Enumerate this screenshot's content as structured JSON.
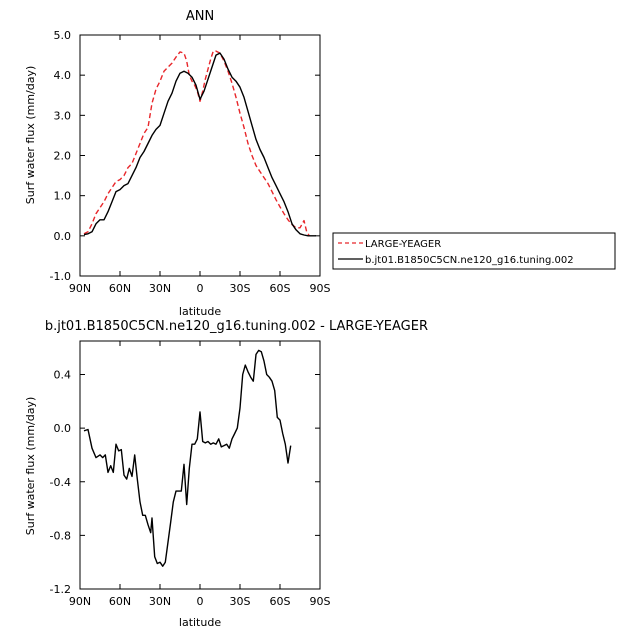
{
  "chart_data": [
    {
      "type": "line",
      "title": "ANN",
      "xlabel": "latitude",
      "ylabel": "Surf water flux (mm/day)",
      "xlim": [
        -90,
        90
      ],
      "ylim": [
        -1.0,
        5.0
      ],
      "x_ticks": [
        -90,
        -60,
        -30,
        0,
        30,
        60,
        90
      ],
      "x_tick_labels": [
        "90N",
        "60N",
        "30N",
        "0",
        "30S",
        "60S",
        "90S"
      ],
      "y_ticks": [
        -1.0,
        0.0,
        1.0,
        2.0,
        3.0,
        4.0,
        5.0
      ],
      "y_tick_labels": [
        "-1.0",
        "0.0",
        "1.0",
        "2.0",
        "3.0",
        "4.0",
        "5.0"
      ],
      "legend": {
        "placement": "outside-right"
      },
      "series": [
        {
          "name": "LARGE-YEAGER",
          "color": "#e8262a",
          "dash": "dashed",
          "points": [
            [
              -87,
              0.05
            ],
            [
              -84,
              0.1
            ],
            [
              -81,
              0.3
            ],
            [
              -78,
              0.55
            ],
            [
              -75,
              0.7
            ],
            [
              -72,
              0.85
            ],
            [
              -69,
              1.05
            ],
            [
              -66,
              1.2
            ],
            [
              -63,
              1.35
            ],
            [
              -60,
              1.4
            ],
            [
              -57,
              1.5
            ],
            [
              -54,
              1.7
            ],
            [
              -51,
              1.8
            ],
            [
              -48,
              2.05
            ],
            [
              -45,
              2.3
            ],
            [
              -42,
              2.55
            ],
            [
              -39,
              2.7
            ],
            [
              -36,
              3.3
            ],
            [
              -33,
              3.65
            ],
            [
              -30,
              3.85
            ],
            [
              -27,
              4.1
            ],
            [
              -24,
              4.2
            ],
            [
              -21,
              4.3
            ],
            [
              -18,
              4.45
            ],
            [
              -15,
              4.58
            ],
            [
              -12,
              4.55
            ],
            [
              -10,
              4.35
            ],
            [
              -8,
              4.0
            ],
            [
              -6,
              3.85
            ],
            [
              -4,
              3.75
            ],
            [
              -2,
              3.6
            ],
            [
              0,
              3.35
            ],
            [
              2,
              3.6
            ],
            [
              4,
              3.9
            ],
            [
              6,
              4.15
            ],
            [
              8,
              4.4
            ],
            [
              10,
              4.6
            ],
            [
              12,
              4.6
            ],
            [
              15,
              4.55
            ],
            [
              18,
              4.35
            ],
            [
              21,
              4.1
            ],
            [
              24,
              3.8
            ],
            [
              27,
              3.45
            ],
            [
              30,
              3.05
            ],
            [
              33,
              2.7
            ],
            [
              36,
              2.3
            ],
            [
              39,
              2.0
            ],
            [
              42,
              1.75
            ],
            [
              45,
              1.6
            ],
            [
              48,
              1.45
            ],
            [
              51,
              1.3
            ],
            [
              54,
              1.1
            ],
            [
              57,
              0.9
            ],
            [
              60,
              0.72
            ],
            [
              63,
              0.55
            ],
            [
              66,
              0.4
            ],
            [
              69,
              0.28
            ],
            [
              72,
              0.2
            ],
            [
              75,
              0.2
            ],
            [
              78,
              0.38
            ],
            [
              80,
              0.1
            ],
            [
              82,
              0.0
            ]
          ]
        },
        {
          "name": "b.jt01.B1850C5CN.ne120_g16.tuning.002",
          "color": "#000000",
          "dash": "solid",
          "points": [
            [
              -87,
              0.03
            ],
            [
              -84,
              0.05
            ],
            [
              -81,
              0.1
            ],
            [
              -78,
              0.3
            ],
            [
              -75,
              0.4
            ],
            [
              -72,
              0.4
            ],
            [
              -69,
              0.6
            ],
            [
              -66,
              0.85
            ],
            [
              -63,
              1.1
            ],
            [
              -60,
              1.15
            ],
            [
              -57,
              1.25
            ],
            [
              -54,
              1.3
            ],
            [
              -51,
              1.5
            ],
            [
              -48,
              1.7
            ],
            [
              -45,
              1.95
            ],
            [
              -42,
              2.1
            ],
            [
              -39,
              2.3
            ],
            [
              -36,
              2.5
            ],
            [
              -33,
              2.65
            ],
            [
              -30,
              2.75
            ],
            [
              -27,
              3.05
            ],
            [
              -24,
              3.35
            ],
            [
              -21,
              3.55
            ],
            [
              -18,
              3.85
            ],
            [
              -15,
              4.05
            ],
            [
              -12,
              4.1
            ],
            [
              -9,
              4.05
            ],
            [
              -6,
              3.95
            ],
            [
              -3,
              3.75
            ],
            [
              0,
              3.4
            ],
            [
              3,
              3.6
            ],
            [
              6,
              3.9
            ],
            [
              9,
              4.2
            ],
            [
              12,
              4.5
            ],
            [
              15,
              4.55
            ],
            [
              18,
              4.4
            ],
            [
              21,
              4.15
            ],
            [
              24,
              3.95
            ],
            [
              27,
              3.85
            ],
            [
              30,
              3.7
            ],
            [
              33,
              3.45
            ],
            [
              36,
              3.1
            ],
            [
              39,
              2.75
            ],
            [
              42,
              2.4
            ],
            [
              45,
              2.15
            ],
            [
              48,
              1.95
            ],
            [
              51,
              1.7
            ],
            [
              54,
              1.45
            ],
            [
              57,
              1.25
            ],
            [
              60,
              1.05
            ],
            [
              63,
              0.85
            ],
            [
              66,
              0.6
            ],
            [
              69,
              0.3
            ],
            [
              72,
              0.15
            ],
            [
              75,
              0.05
            ],
            [
              78,
              0.02
            ],
            [
              81,
              0.0
            ],
            [
              84,
              0.0
            ],
            [
              87,
              0.0
            ]
          ]
        }
      ]
    },
    {
      "type": "line",
      "title": "b.jt01.B1850C5CN.ne120_g16.tuning.002 - LARGE-YEAGER",
      "xlabel": "latitude",
      "ylabel": "Surf water flux (mm/day)",
      "xlim": [
        -90,
        90
      ],
      "ylim": [
        -1.2,
        0.65
      ],
      "x_ticks": [
        -90,
        -60,
        -30,
        0,
        30,
        60,
        90
      ],
      "x_tick_labels": [
        "90N",
        "60N",
        "30N",
        "0",
        "30S",
        "60S",
        "90S"
      ],
      "y_ticks": [
        -1.2,
        -0.8,
        -0.4,
        0.0,
        0.4
      ],
      "y_tick_labels": [
        "-1.2",
        "-0.8",
        "-0.4",
        "0.0",
        "0.4"
      ],
      "series": [
        {
          "color": "#000000",
          "dash": "solid",
          "points": [
            [
              -87,
              -0.02
            ],
            [
              -84,
              -0.01
            ],
            [
              -81,
              -0.15
            ],
            [
              -78,
              -0.22
            ],
            [
              -75,
              -0.2
            ],
            [
              -73,
              -0.22
            ],
            [
              -71,
              -0.2
            ],
            [
              -69,
              -0.33
            ],
            [
              -67,
              -0.28
            ],
            [
              -65,
              -0.33
            ],
            [
              -63,
              -0.12
            ],
            [
              -61,
              -0.17
            ],
            [
              -59,
              -0.16
            ],
            [
              -57,
              -0.35
            ],
            [
              -55,
              -0.38
            ],
            [
              -53,
              -0.3
            ],
            [
              -51,
              -0.36
            ],
            [
              -49,
              -0.2
            ],
            [
              -47,
              -0.38
            ],
            [
              -45,
              -0.55
            ],
            [
              -43,
              -0.65
            ],
            [
              -41,
              -0.65
            ],
            [
              -39,
              -0.72
            ],
            [
              -37,
              -0.78
            ],
            [
              -36,
              -0.67
            ],
            [
              -34,
              -0.96
            ],
            [
              -32,
              -1.01
            ],
            [
              -30,
              -1.0
            ],
            [
              -28,
              -1.03
            ],
            [
              -26,
              -1.0
            ],
            [
              -24,
              -0.85
            ],
            [
              -22,
              -0.7
            ],
            [
              -20,
              -0.55
            ],
            [
              -18,
              -0.47
            ],
            [
              -16,
              -0.47
            ],
            [
              -14,
              -0.47
            ],
            [
              -12,
              -0.27
            ],
            [
              -10,
              -0.57
            ],
            [
              -8,
              -0.3
            ],
            [
              -6,
              -0.12
            ],
            [
              -4,
              -0.12
            ],
            [
              -2,
              -0.08
            ],
            [
              0,
              0.12
            ],
            [
              2,
              -0.1
            ],
            [
              4,
              -0.11
            ],
            [
              6,
              -0.1
            ],
            [
              8,
              -0.12
            ],
            [
              10,
              -0.11
            ],
            [
              12,
              -0.12
            ],
            [
              14,
              -0.08
            ],
            [
              16,
              -0.14
            ],
            [
              18,
              -0.13
            ],
            [
              20,
              -0.12
            ],
            [
              22,
              -0.15
            ],
            [
              24,
              -0.08
            ],
            [
              26,
              -0.04
            ],
            [
              28,
              0.0
            ],
            [
              30,
              0.15
            ],
            [
              32,
              0.4
            ],
            [
              34,
              0.47
            ],
            [
              36,
              0.42
            ],
            [
              38,
              0.38
            ],
            [
              40,
              0.35
            ],
            [
              42,
              0.55
            ],
            [
              44,
              0.58
            ],
            [
              46,
              0.57
            ],
            [
              48,
              0.5
            ],
            [
              50,
              0.4
            ],
            [
              52,
              0.38
            ],
            [
              54,
              0.35
            ],
            [
              56,
              0.28
            ],
            [
              58,
              0.08
            ],
            [
              60,
              0.06
            ],
            [
              62,
              -0.04
            ],
            [
              64,
              -0.12
            ],
            [
              66,
              -0.26
            ],
            [
              68,
              -0.13
            ]
          ]
        }
      ]
    }
  ]
}
